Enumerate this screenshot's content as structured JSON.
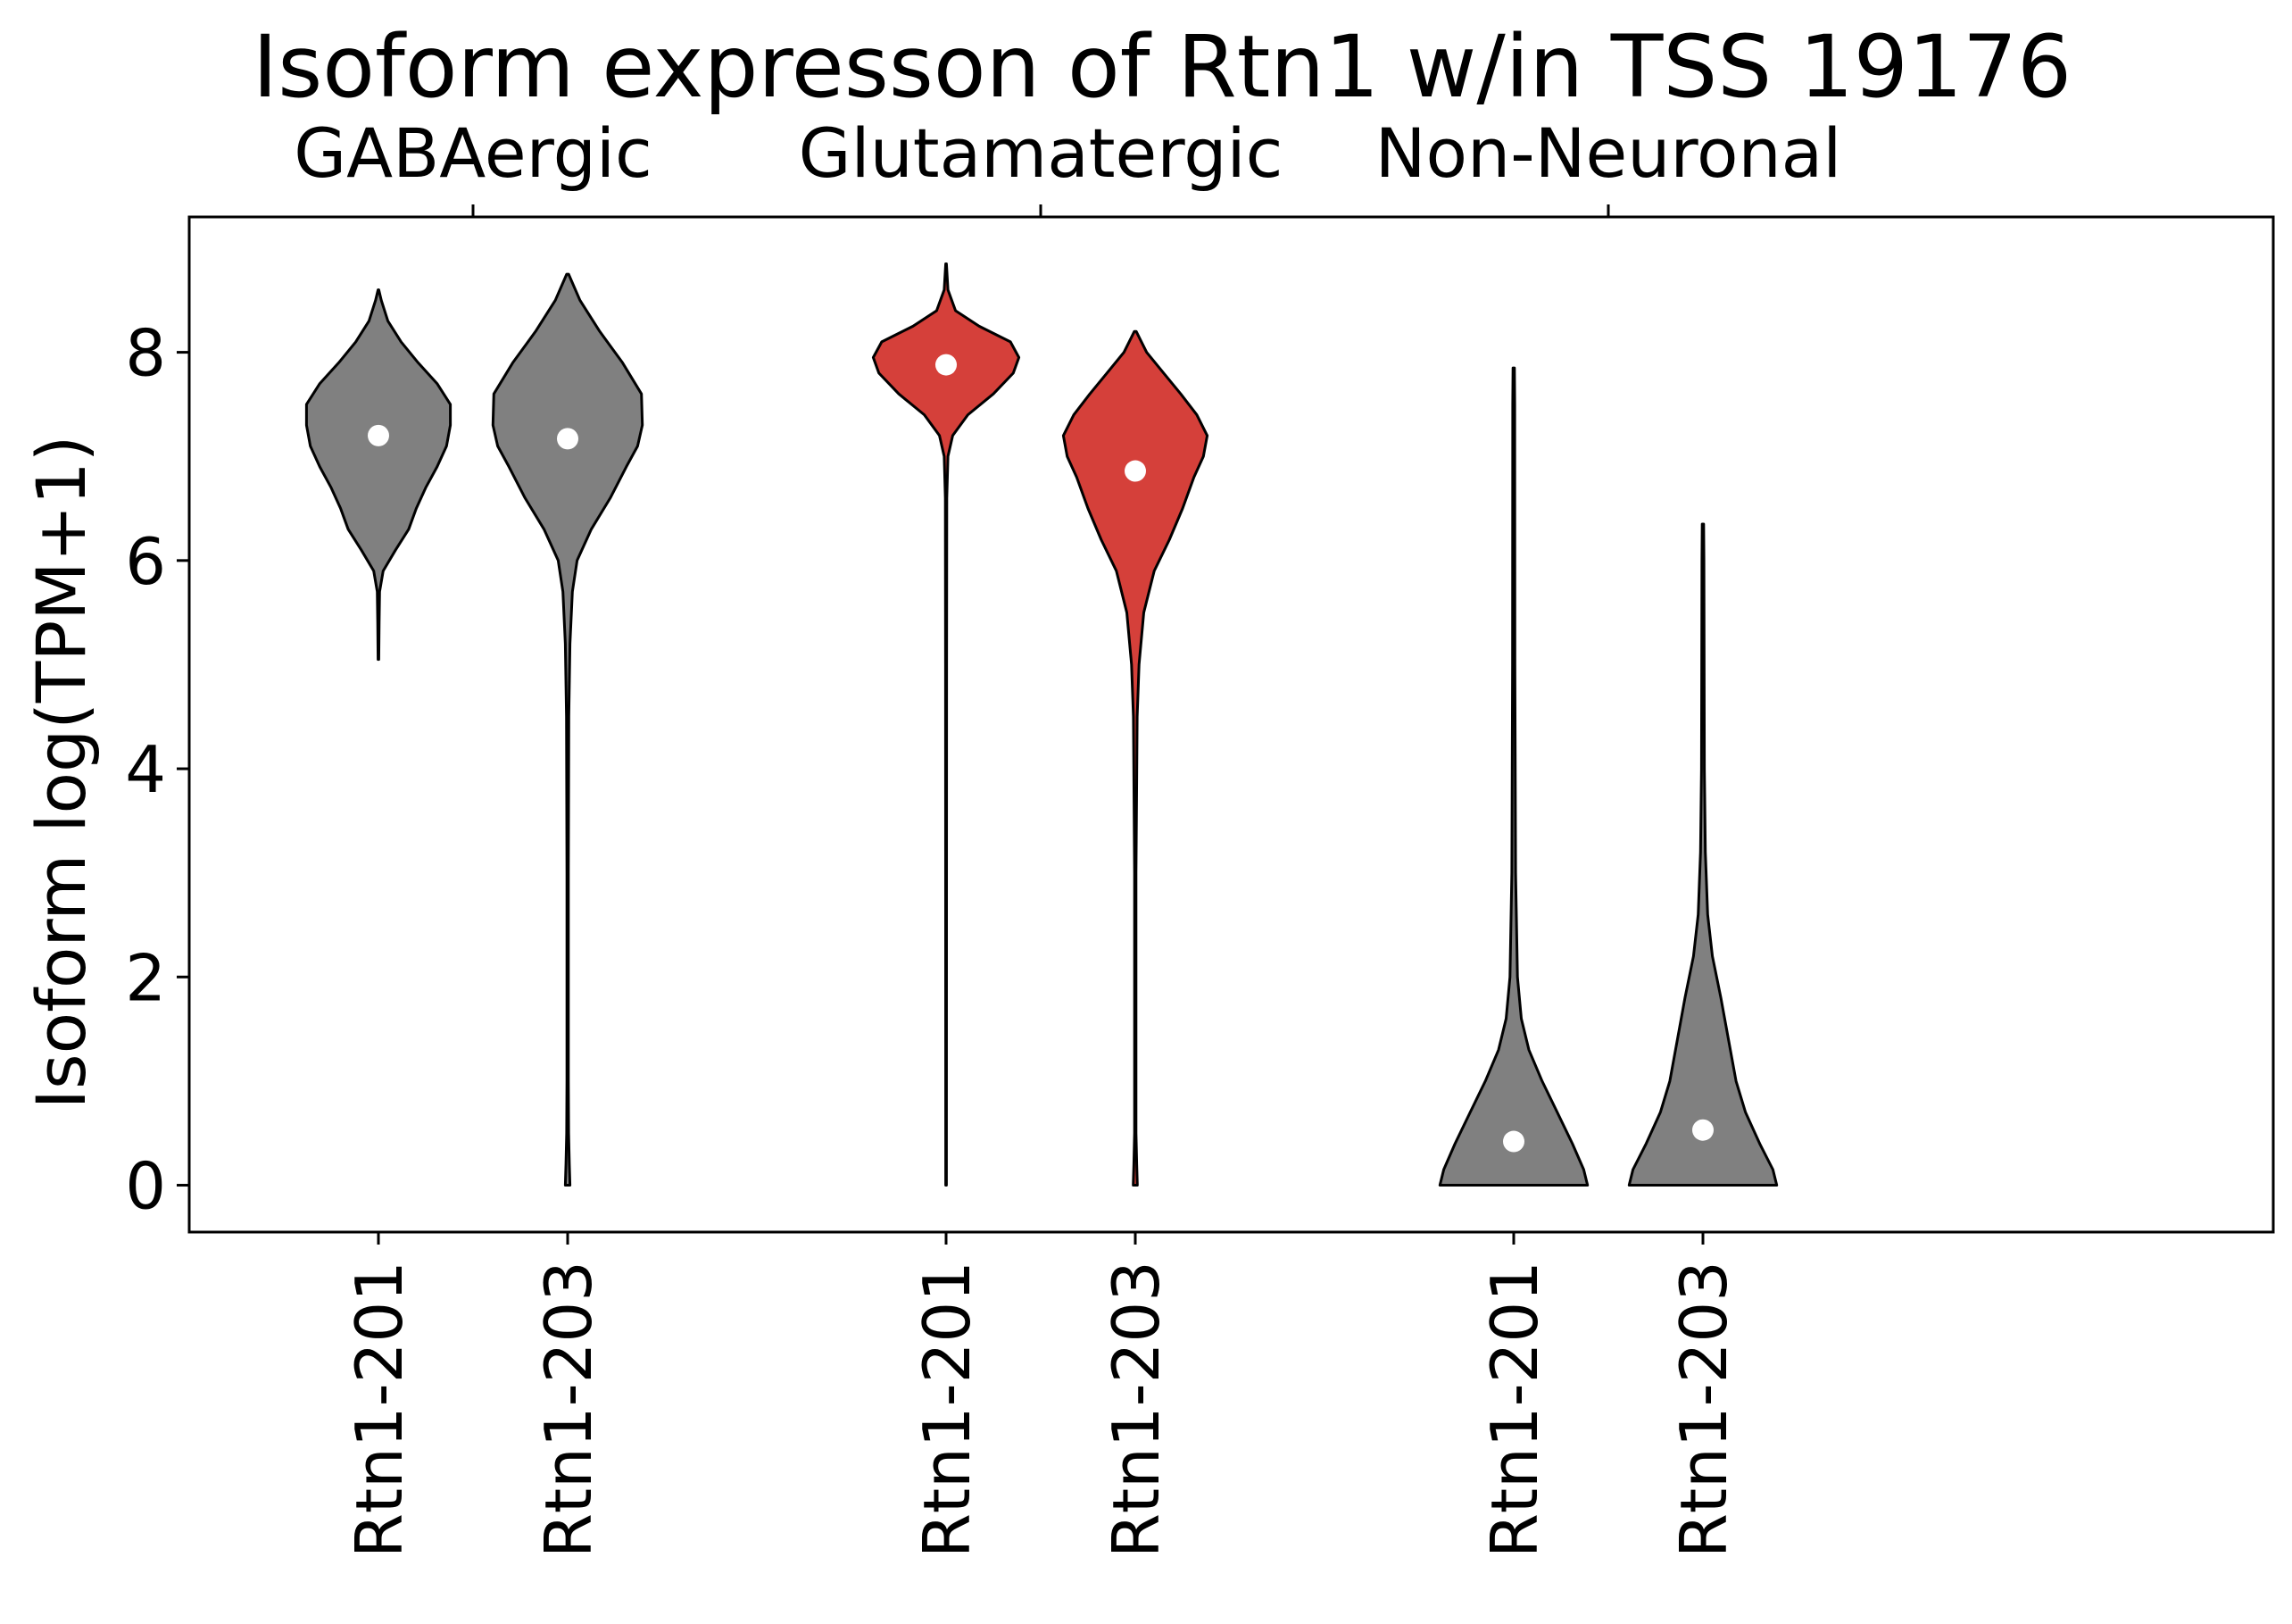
{
  "chart_data": {
    "type": "violin",
    "title": "Isoform expresson of Rtn1 w/in TSS 19176",
    "xlabel": "",
    "ylabel": "Isoform log(TPM+1)",
    "ylim": [
      -0.45,
      9.3
    ],
    "yticks": [
      0,
      2,
      4,
      6,
      8
    ],
    "grid": false,
    "legend": "none",
    "colors": {
      "gray": "#808080",
      "red": "#d5403a"
    },
    "groups": [
      {
        "name": "GABAergic",
        "violins": [
          {
            "label": "Rtn1-201",
            "color": "#808080",
            "median": 7.2,
            "min": 5.05,
            "max": 8.6,
            "profile": [
              [
                5.05,
                0.004
              ],
              [
                5.4,
                0.008
              ],
              [
                5.7,
                0.012
              ],
              [
                5.9,
                0.05
              ],
              [
                6.1,
                0.18
              ],
              [
                6.3,
                0.32
              ],
              [
                6.5,
                0.4
              ],
              [
                6.7,
                0.5
              ],
              [
                6.9,
                0.62
              ],
              [
                7.1,
                0.72
              ],
              [
                7.3,
                0.76
              ],
              [
                7.5,
                0.76
              ],
              [
                7.7,
                0.62
              ],
              [
                7.9,
                0.42
              ],
              [
                8.1,
                0.24
              ],
              [
                8.3,
                0.1
              ],
              [
                8.5,
                0.03
              ],
              [
                8.6,
                0.004
              ]
            ]
          },
          {
            "label": "Rtn1-203",
            "color": "#808080",
            "median": 7.17,
            "min": 0.0,
            "max": 8.75,
            "profile": [
              [
                0.0,
                0.025
              ],
              [
                0.2,
                0.018
              ],
              [
                0.5,
                0.01
              ],
              [
                1.0,
                0.008
              ],
              [
                3.0,
                0.008
              ],
              [
                4.5,
                0.012
              ],
              [
                5.2,
                0.025
              ],
              [
                5.7,
                0.05
              ],
              [
                6.0,
                0.1
              ],
              [
                6.3,
                0.25
              ],
              [
                6.6,
                0.45
              ],
              [
                6.9,
                0.62
              ],
              [
                7.1,
                0.74
              ],
              [
                7.3,
                0.79
              ],
              [
                7.6,
                0.78
              ],
              [
                7.9,
                0.58
              ],
              [
                8.2,
                0.34
              ],
              [
                8.5,
                0.13
              ],
              [
                8.75,
                0.01
              ]
            ]
          }
        ]
      },
      {
        "name": "Glutamatergic",
        "violins": [
          {
            "label": "Rtn1-201",
            "color": "#d5403a",
            "median": 7.88,
            "min": 0.0,
            "max": 8.85,
            "profile": [
              [
                0.0,
                0.004
              ],
              [
                5.0,
                0.006
              ],
              [
                6.6,
                0.008
              ],
              [
                7.0,
                0.02
              ],
              [
                7.2,
                0.07
              ],
              [
                7.4,
                0.23
              ],
              [
                7.6,
                0.5
              ],
              [
                7.8,
                0.71
              ],
              [
                7.95,
                0.77
              ],
              [
                8.1,
                0.68
              ],
              [
                8.25,
                0.35
              ],
              [
                8.4,
                0.1
              ],
              [
                8.6,
                0.02
              ],
              [
                8.85,
                0.004
              ]
            ]
          },
          {
            "label": "Rtn1-203",
            "color": "#d5403a",
            "median": 6.86,
            "min": 0.0,
            "max": 8.2,
            "profile": [
              [
                0.0,
                0.022
              ],
              [
                0.2,
                0.015
              ],
              [
                0.5,
                0.008
              ],
              [
                3.0,
                0.008
              ],
              [
                4.5,
                0.02
              ],
              [
                5.0,
                0.04
              ],
              [
                5.5,
                0.09
              ],
              [
                5.9,
                0.2
              ],
              [
                6.2,
                0.36
              ],
              [
                6.5,
                0.5
              ],
              [
                6.8,
                0.62
              ],
              [
                7.0,
                0.72
              ],
              [
                7.2,
                0.76
              ],
              [
                7.4,
                0.65
              ],
              [
                7.6,
                0.48
              ],
              [
                7.8,
                0.3
              ],
              [
                8.0,
                0.12
              ],
              [
                8.2,
                0.01
              ]
            ]
          }
        ]
      },
      {
        "name": "Non-Neuronal",
        "violins": [
          {
            "label": "Rtn1-201",
            "color": "#808080",
            "median": 0.42,
            "min": 0.0,
            "max": 7.85,
            "profile": [
              [
                0.0,
                0.78
              ],
              [
                0.15,
                0.74
              ],
              [
                0.4,
                0.62
              ],
              [
                0.7,
                0.46
              ],
              [
                1.0,
                0.3
              ],
              [
                1.3,
                0.16
              ],
              [
                1.6,
                0.08
              ],
              [
                2.0,
                0.04
              ],
              [
                3.0,
                0.02
              ],
              [
                5.0,
                0.012
              ],
              [
                7.5,
                0.01
              ],
              [
                7.85,
                0.008
              ]
            ]
          },
          {
            "label": "Rtn1-203",
            "color": "#808080",
            "median": 0.53,
            "min": 0.0,
            "max": 6.35,
            "profile": [
              [
                0.0,
                0.78
              ],
              [
                0.15,
                0.74
              ],
              [
                0.4,
                0.6
              ],
              [
                0.7,
                0.45
              ],
              [
                1.0,
                0.35
              ],
              [
                1.4,
                0.27
              ],
              [
                1.8,
                0.19
              ],
              [
                2.2,
                0.1
              ],
              [
                2.6,
                0.05
              ],
              [
                3.2,
                0.025
              ],
              [
                4.0,
                0.015
              ],
              [
                6.0,
                0.01
              ],
              [
                6.35,
                0.008
              ]
            ]
          }
        ]
      }
    ]
  }
}
